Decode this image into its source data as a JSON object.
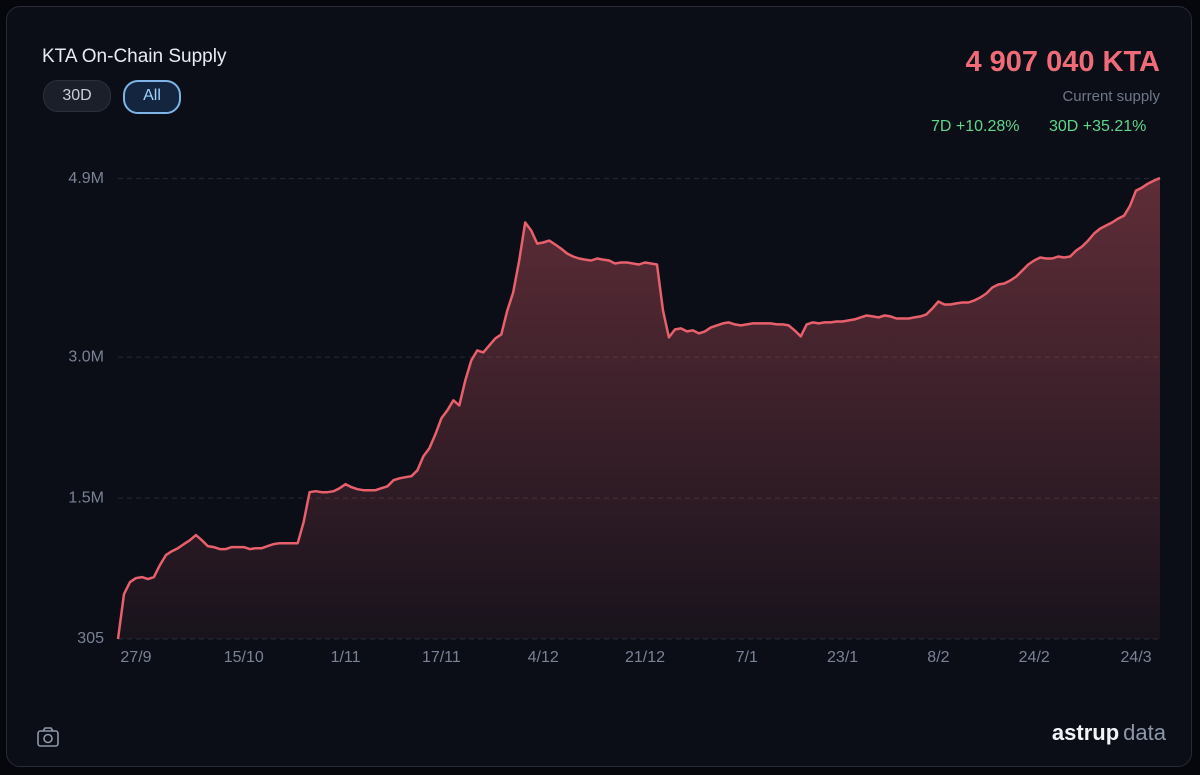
{
  "chart_data": {
    "type": "area",
    "title": "KTA On-Chain Supply",
    "color": "#e8606c",
    "categories": [
      null,
      null,
      null,
      "27/9",
      null,
      null,
      null,
      null,
      null,
      null,
      null,
      null,
      null,
      null,
      null,
      null,
      null,
      null,
      null,
      null,
      null,
      "15/10",
      null,
      null,
      null,
      null,
      null,
      null,
      null,
      null,
      null,
      null,
      null,
      null,
      null,
      null,
      null,
      null,
      "1/11",
      null,
      null,
      null,
      null,
      null,
      null,
      null,
      null,
      null,
      null,
      null,
      null,
      null,
      null,
      null,
      "17/11",
      null,
      null,
      null,
      null,
      null,
      null,
      null,
      null,
      null,
      null,
      null,
      null,
      null,
      null,
      null,
      null,
      "4/12",
      null,
      null,
      null,
      null,
      null,
      null,
      null,
      null,
      null,
      null,
      null,
      null,
      null,
      null,
      null,
      null,
      "21/12",
      null,
      null,
      null,
      null,
      null,
      null,
      null,
      null,
      null,
      null,
      null,
      null,
      null,
      null,
      null,
      null,
      "7/1",
      null,
      null,
      null,
      null,
      null,
      null,
      null,
      null,
      null,
      null,
      null,
      null,
      null,
      null,
      null,
      "23/1",
      null,
      null,
      null,
      null,
      null,
      null,
      null,
      null,
      null,
      null,
      null,
      null,
      null,
      null,
      null,
      "8/2",
      null,
      null,
      null,
      null,
      null,
      null,
      null,
      null,
      null,
      null,
      null,
      null,
      null,
      null,
      null,
      "24/2",
      null,
      null,
      null,
      null,
      null,
      null,
      null,
      null,
      null,
      null,
      null,
      null,
      null,
      null,
      null,
      null,
      "24/3",
      null,
      null,
      null,
      null
    ],
    "values": [
      305,
      478000,
      606000,
      648000,
      659000,
      638000,
      659000,
      787000,
      893000,
      935000,
      967000,
      1010000,
      1052000,
      1106000,
      1052000,
      989000,
      978000,
      957000,
      957000,
      978000,
      978000,
      978000,
      957000,
      967000,
      967000,
      989000,
      1010000,
      1020000,
      1020000,
      1020000,
      1020000,
      1244000,
      1563000,
      1573000,
      1563000,
      1563000,
      1573000,
      1605000,
      1648000,
      1616000,
      1595000,
      1584000,
      1584000,
      1584000,
      1605000,
      1626000,
      1690000,
      1711000,
      1722000,
      1733000,
      1796000,
      1945000,
      2030000,
      2179000,
      2349000,
      2434000,
      2541000,
      2487000,
      2753000,
      2966000,
      3072000,
      3051000,
      3125000,
      3200000,
      3242000,
      3497000,
      3689000,
      4029000,
      4433000,
      4348000,
      4209000,
      4220000,
      4241000,
      4199000,
      4156000,
      4103000,
      4071000,
      4050000,
      4039000,
      4029000,
      4050000,
      4039000,
      4029000,
      3997000,
      4008000,
      4008000,
      3997000,
      3986000,
      4008000,
      3997000,
      3986000,
      3497000,
      3210000,
      3295000,
      3306000,
      3274000,
      3285000,
      3253000,
      3274000,
      3317000,
      3338000,
      3359000,
      3370000,
      3349000,
      3338000,
      3349000,
      3359000,
      3359000,
      3359000,
      3359000,
      3349000,
      3349000,
      3338000,
      3285000,
      3221000,
      3349000,
      3370000,
      3359000,
      3370000,
      3370000,
      3380000,
      3380000,
      3391000,
      3402000,
      3423000,
      3444000,
      3434000,
      3423000,
      3444000,
      3434000,
      3412000,
      3412000,
      3412000,
      3423000,
      3434000,
      3455000,
      3519000,
      3593000,
      3561000,
      3561000,
      3572000,
      3582000,
      3582000,
      3604000,
      3635000,
      3678000,
      3742000,
      3774000,
      3784000,
      3816000,
      3859000,
      3922000,
      3986000,
      4029000,
      4061000,
      4050000,
      4050000,
      4071000,
      4061000,
      4071000,
      4135000,
      4178000,
      4241000,
      4316000,
      4369000,
      4401000,
      4433000,
      4475000,
      4507000,
      4613000,
      4773000,
      4805000,
      4847000,
      4879000,
      4907040
    ],
    "ylim": [
      305,
      4907040
    ],
    "yticks": [
      305,
      {
        "value": 1500000,
        "label": "1.5M"
      },
      {
        "value": 3000000,
        "label": "3.0M"
      },
      {
        "value": 4900000,
        "label": "4.9M"
      }
    ],
    "grid": true
  },
  "buttons": [
    "30D",
    "All"
  ],
  "current_supply": "4 907 040 KTA",
  "current_supply_label": "Current supply",
  "changes": [
    "7D +10.28%",
    "30D +35.21%"
  ],
  "brand": [
    "astrup",
    "data"
  ]
}
